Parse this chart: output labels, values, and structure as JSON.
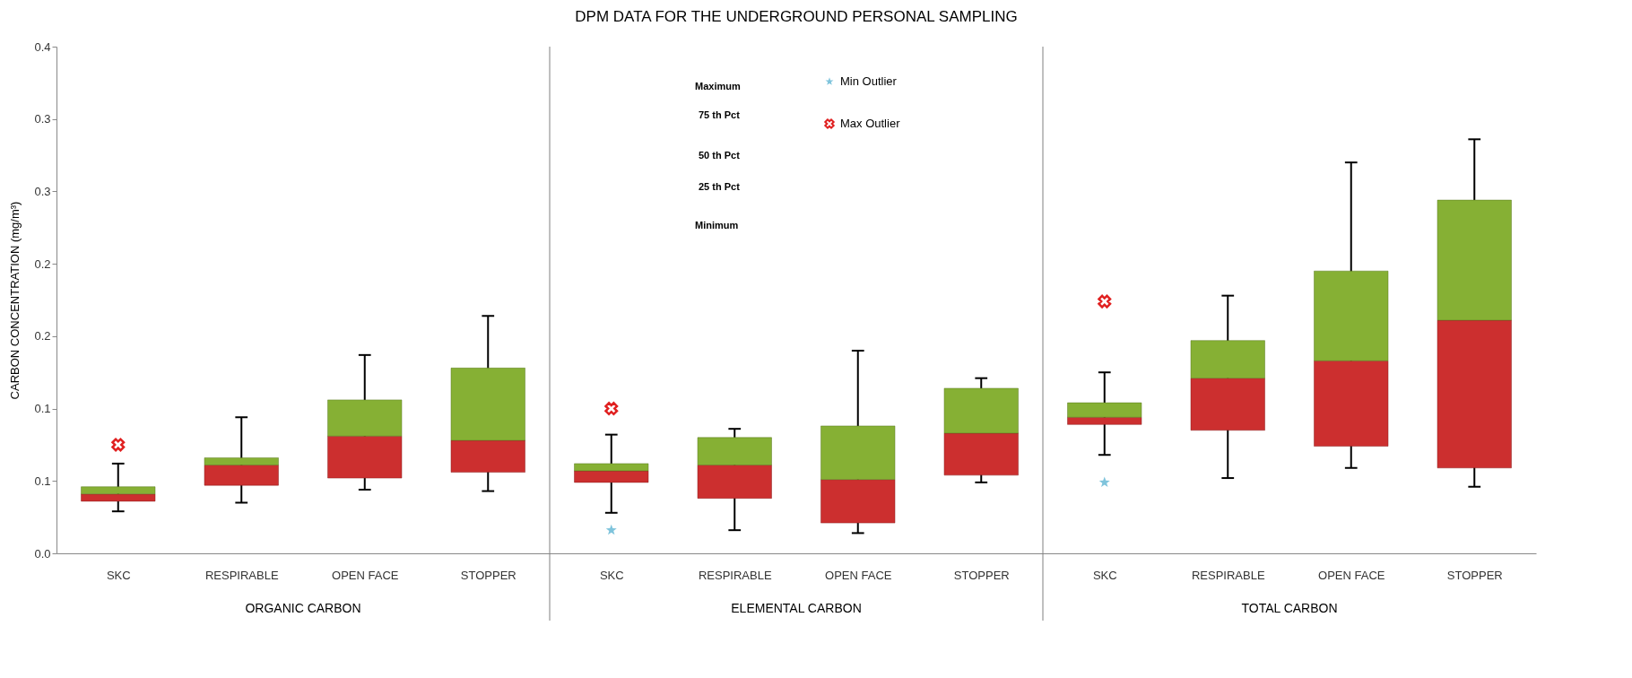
{
  "chart_data": {
    "type": "box",
    "title": "DPM DATA FOR  THE UNDERGROUND  PERSONAL SAMPLING",
    "ylabel": "CARBON CONCENTRATION  (mg/m³)",
    "categories": [
      "SKC",
      "RESPIRABLE",
      "OPEN FACE",
      "STOPPER",
      "SKC",
      "RESPIRABLE",
      "OPEN FACE",
      "STOPPER",
      "SKC",
      "RESPIRABLE",
      "OPEN FACE",
      "STOPPER"
    ],
    "ylim": [
      0,
      0.35
    ],
    "yticks": [
      {
        "value": 0,
        "label": "0.0"
      },
      {
        "value": 0.05,
        "label": "0.1"
      },
      {
        "value": 0.1,
        "label": "0.1"
      },
      {
        "value": 0.15,
        "label": "0.2"
      },
      {
        "value": 0.2,
        "label": "0.2"
      },
      {
        "value": 0.25,
        "label": "0.3"
      },
      {
        "value": 0.3,
        "label": "0.3"
      },
      {
        "value": 0.35,
        "label": "0.4"
      }
    ],
    "grid": false,
    "legend": "top",
    "series": [
      {
        "type": "box",
        "colors": [
          [
            "#cc2f2f",
            "#86b034"
          ],
          [
            "#cc2f2f",
            "#86b034"
          ],
          [
            "#cc2f2f",
            "#86b034"
          ],
          [
            "#cc2f2f",
            "#86b034"
          ],
          [
            "#cc2f2f",
            "#86b034"
          ],
          [
            "#cc2f2f",
            "#86b034"
          ],
          [
            "#cc2f2f",
            "#86b034"
          ],
          [
            "#cc2f2f",
            "#86b034"
          ],
          [
            "#cc2f2f",
            "#86b034"
          ],
          [
            "#cc2f2f",
            "#86b034"
          ],
          [
            "#cc2f2f",
            "#86b034"
          ],
          [
            "#cc2f2f",
            "#86b034"
          ]
        ],
        "boxes": [
          {
            "low": 0.029,
            "q1": 0.036,
            "median": 0.041,
            "q3": 0.046,
            "high": 0.062
          },
          {
            "low": 0.035,
            "q1": 0.047,
            "median": 0.061,
            "q3": 0.066,
            "high": 0.094
          },
          {
            "low": 0.044,
            "q1": 0.052,
            "median": 0.081,
            "q3": 0.106,
            "high": 0.137
          },
          {
            "low": 0.043,
            "q1": 0.056,
            "median": 0.078,
            "q3": 0.128,
            "high": 0.164
          },
          {
            "low": 0.028,
            "q1": 0.049,
            "median": 0.057,
            "q3": 0.062,
            "high": 0.082
          },
          {
            "low": 0.016,
            "q1": 0.038,
            "median": 0.061,
            "q3": 0.08,
            "high": 0.086
          },
          {
            "low": 0.014,
            "q1": 0.021,
            "median": 0.051,
            "q3": 0.088,
            "high": 0.14
          },
          {
            "low": 0.049,
            "q1": 0.054,
            "median": 0.083,
            "q3": 0.114,
            "high": 0.121
          },
          {
            "low": 0.068,
            "q1": 0.089,
            "median": 0.094,
            "q3": 0.104,
            "high": 0.125
          },
          {
            "low": 0.052,
            "q1": 0.085,
            "median": 0.121,
            "q3": 0.147,
            "high": 0.178
          },
          {
            "low": 0.059,
            "q1": 0.074,
            "median": 0.133,
            "q3": 0.195,
            "high": 0.27
          },
          {
            "low": 0.046,
            "q1": 0.059,
            "median": 0.161,
            "q3": 0.244,
            "high": 0.286
          }
        ]
      },
      {
        "type": "scatter",
        "name": "Min Outlier",
        "color": "#7fc4dc",
        "marker": "star",
        "values": [
          null,
          null,
          null,
          null,
          0.016,
          null,
          null,
          null,
          0.049,
          null,
          null,
          null
        ]
      },
      {
        "type": "scatter",
        "name": "Max Outlier",
        "color": "#e02020",
        "marker": "cross",
        "values": [
          0.075,
          null,
          null,
          null,
          0.1,
          null,
          null,
          null,
          0.174,
          null,
          null,
          null
        ]
      }
    ],
    "annotations": [
      "ORGANIC CARBON",
      "ELEMENTAL CARBON",
      "TOTAL CARBON",
      "Maximum",
      "75 th Pct",
      "50 th Pct",
      "25 th Pct",
      "Minimum"
    ]
  }
}
